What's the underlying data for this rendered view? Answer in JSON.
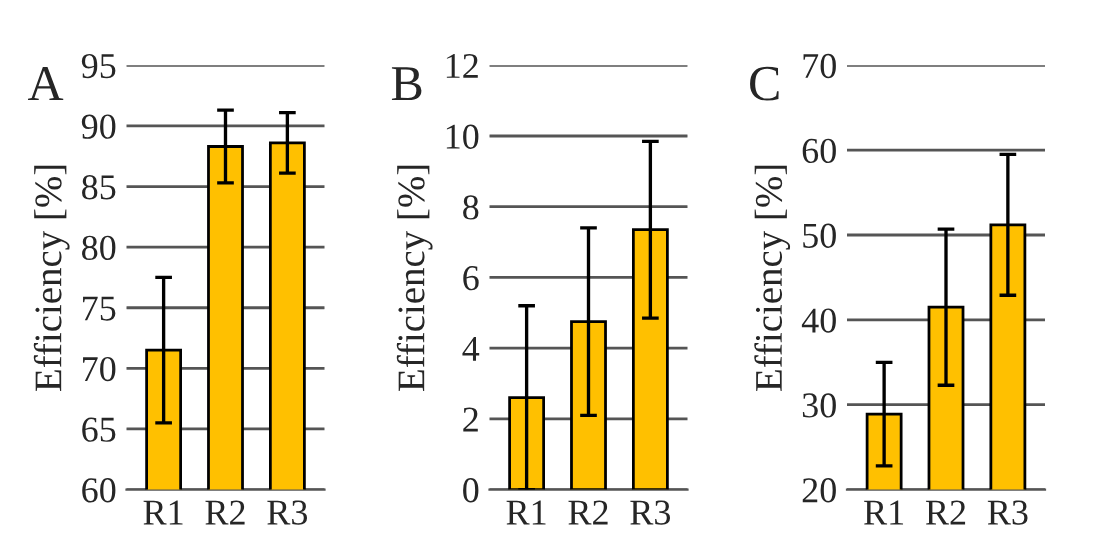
{
  "chart_data": [
    {
      "type": "bar",
      "title": "A",
      "ylabel": "Efficiency [%]",
      "categories": [
        "R1",
        "R2",
        "R3"
      ],
      "values": [
        71.5,
        88.3,
        88.6
      ],
      "errors": [
        6,
        3,
        2.5
      ],
      "color": "#ffc000",
      "ylim": [
        60,
        95
      ],
      "yticks": [
        60,
        65,
        70,
        75,
        80,
        85,
        90,
        95
      ],
      "grid": "y",
      "legend": false
    },
    {
      "type": "bar",
      "title": "B",
      "ylabel": "Efficiency [%]",
      "categories": [
        "R1",
        "R2",
        "R3"
      ],
      "values": [
        2.6,
        4.75,
        7.35
      ],
      "errors": [
        2.6,
        2.65,
        2.5
      ],
      "color": "#ffc000",
      "ylim": [
        0,
        12
      ],
      "yticks": [
        0,
        2,
        4,
        6,
        8,
        10,
        12
      ],
      "grid": "y",
      "legend": false
    },
    {
      "type": "bar",
      "title": "C",
      "ylabel": "Efficiency [%]",
      "categories": [
        "R1",
        "R2",
        "R3"
      ],
      "values": [
        28.9,
        41.5,
        51.2
      ],
      "errors": [
        6.1,
        9.2,
        8.3
      ],
      "color": "#ffc000",
      "ylim": [
        20,
        70
      ],
      "yticks": [
        20,
        30,
        40,
        50,
        60,
        70
      ],
      "grid": "y",
      "legend": false
    }
  ]
}
